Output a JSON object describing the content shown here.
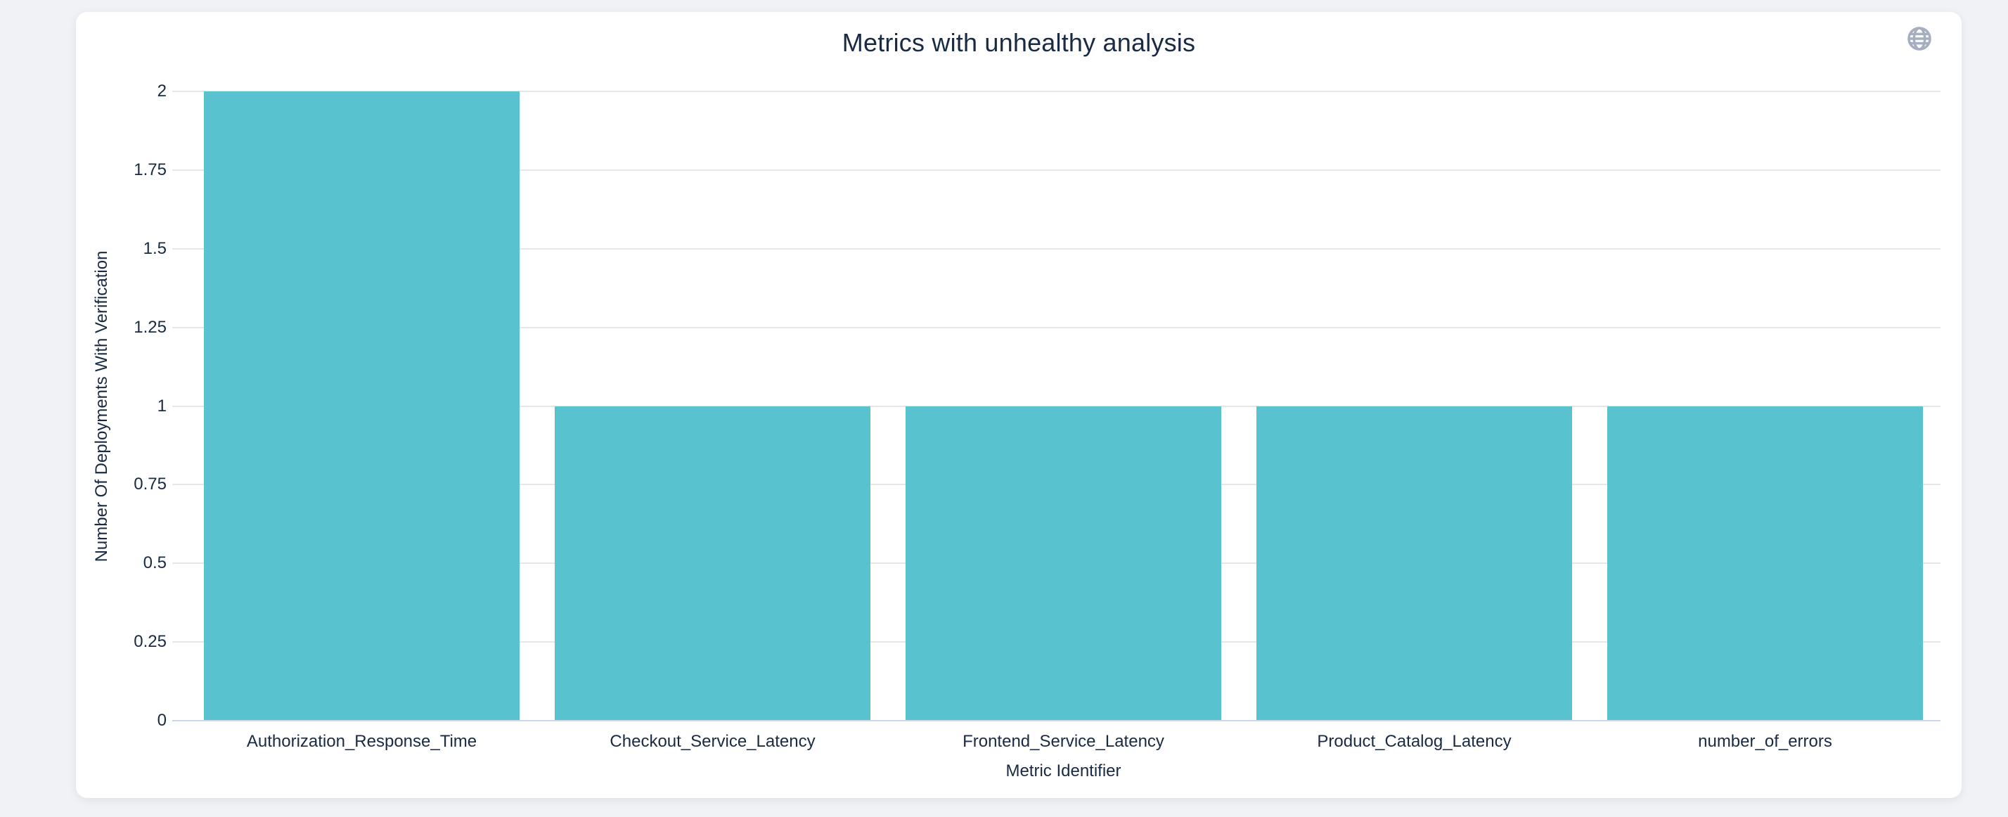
{
  "icons": {
    "globe": "globe-icon"
  },
  "chart_data": {
    "type": "bar",
    "title": "Metrics with unhealthy analysis",
    "xlabel": "Metric Identifier",
    "ylabel": "Number Of Deployments With Verification",
    "categories": [
      "Authorization_Response_Time",
      "Checkout_Service_Latency",
      "Frontend_Service_Latency",
      "Product_Catalog_Latency",
      "number_of_errors"
    ],
    "values": [
      2,
      1,
      1,
      1,
      1
    ],
    "ylim": [
      0,
      2
    ],
    "y_ticks": [
      0,
      0.25,
      0.5,
      0.75,
      1,
      1.25,
      1.5,
      1.75,
      2
    ],
    "y_tick_labels": [
      "0",
      "0.25",
      "0.5",
      "0.75",
      "1",
      "1.25",
      "1.5",
      "1.75",
      "2"
    ],
    "grid": true,
    "legend": false,
    "bar_gap_fraction": 0.1,
    "colors": {
      "bar": "#58c3ce",
      "grid": "#e6e6e6",
      "axis_line": "#ccd6eb",
      "text": "#1a2a44",
      "card_background": "#ffffff",
      "page_background": "#f0f2f6",
      "icon": "#a6aebf"
    }
  }
}
